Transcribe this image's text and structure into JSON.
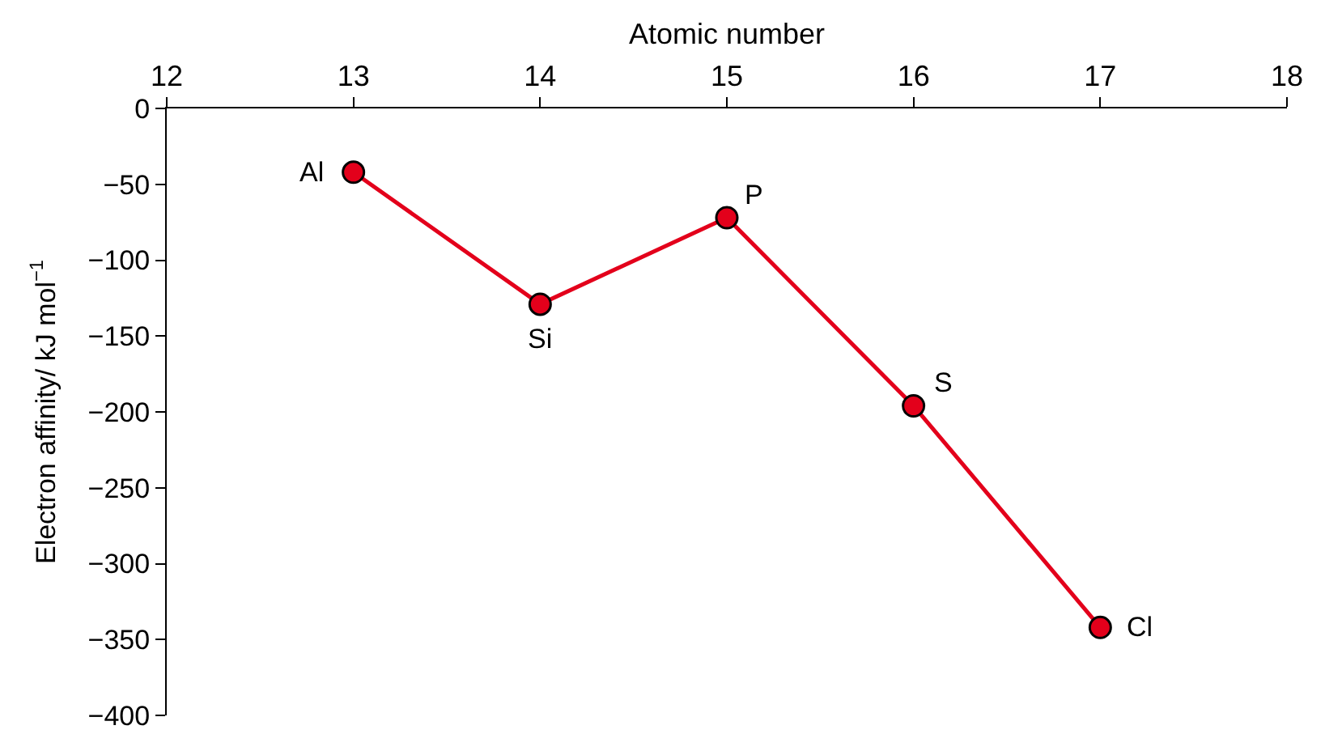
{
  "chart_data": {
    "type": "line",
    "xlabel": "Atomic number",
    "ylabel": "Electron affinity/ kJ mol$^{−1}$",
    "x": [
      13,
      14,
      15,
      16,
      17
    ],
    "series": [
      {
        "color": "#e3001b",
        "values": [
          -42,
          -129,
          -72,
          -196,
          -342
        ]
      }
    ],
    "xlim": [
      12,
      18
    ],
    "xticks": [
      12,
      13,
      14,
      15,
      16,
      17,
      18
    ],
    "ylim": [
      -400,
      0
    ],
    "yticks": [
      0,
      -50,
      -100,
      -150,
      -200,
      -250,
      -300,
      -350,
      -400
    ],
    "marker": "circle",
    "line_style": "solid",
    "annotations": [
      {
        "text": "Al",
        "x": 13,
        "y": -42
      },
      {
        "text": "Si",
        "x": 14,
        "y": -129
      },
      {
        "text": "P",
        "x": 15,
        "y": -72
      },
      {
        "text": "S",
        "x": 16,
        "y": -196
      },
      {
        "text": "Cl",
        "x": 17,
        "y": -342
      }
    ]
  }
}
